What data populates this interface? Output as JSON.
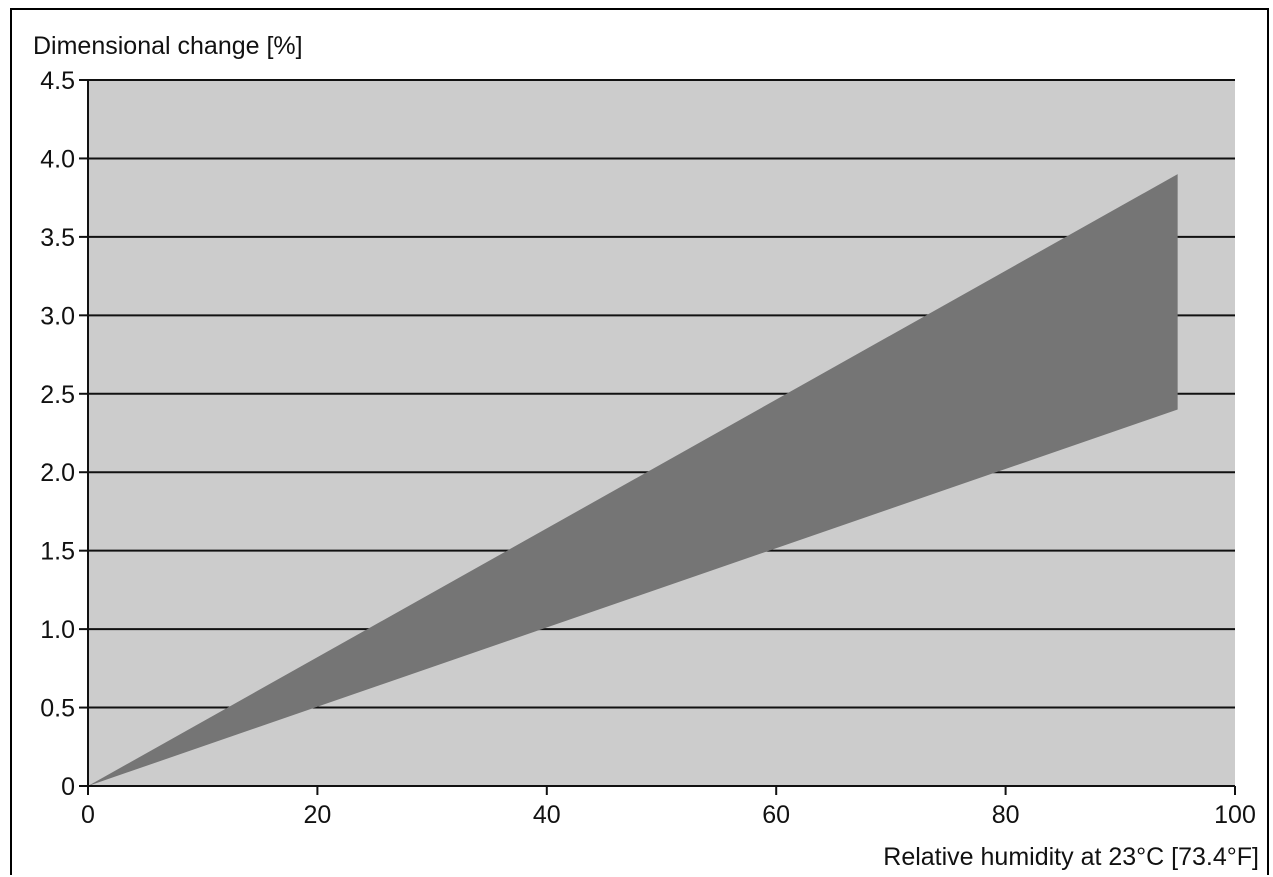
{
  "chart_data": {
    "type": "area",
    "ylabel": "Dimensional change [%]",
    "xlabel": "Relative humidity at 23°C [73.4°F]",
    "xlim": [
      0,
      100
    ],
    "ylim": [
      0,
      4.5
    ],
    "x_ticks": [
      "0",
      "20",
      "40",
      "60",
      "80",
      "100"
    ],
    "y_ticks": [
      "0",
      "0.5",
      "1.0",
      "1.5",
      "2.0",
      "2.5",
      "3.0",
      "3.5",
      "4.0",
      "4.5"
    ],
    "grid": "horizontal",
    "series": [
      {
        "upper": [
          {
            "x": 0,
            "y": 0
          },
          {
            "x": 95,
            "y": 3.9
          }
        ],
        "lower": [
          {
            "x": 0,
            "y": 0
          },
          {
            "x": 95,
            "y": 2.4
          }
        ]
      }
    ],
    "colors": {
      "plot_background": "#cccccc",
      "band_fill": "#757575",
      "gridline": "#111111"
    }
  }
}
